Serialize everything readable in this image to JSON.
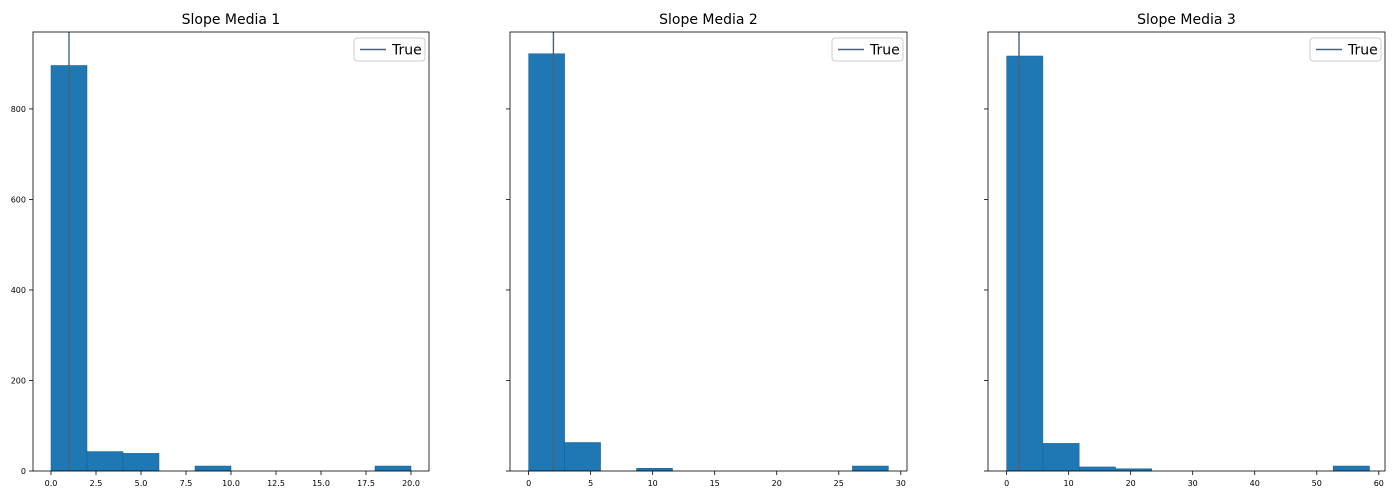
{
  "chart_data": [
    {
      "type": "bar",
      "title": "Slope Media 1",
      "bar_color": "#1f77b4",
      "xlim": [
        -1.0,
        21.0
      ],
      "ylim": [
        0,
        970
      ],
      "xticks": [
        0.0,
        2.5,
        5.0,
        7.5,
        10.0,
        12.5,
        15.0,
        17.5,
        20.0
      ],
      "xtick_labels": [
        "0.0",
        "2.5",
        "5.0",
        "7.5",
        "10.0",
        "12.5",
        "15.0",
        "17.5",
        "20.0"
      ],
      "yticks": [
        0,
        200,
        400,
        600,
        800
      ],
      "ytick_labels": [
        "0",
        "200",
        "400",
        "600",
        "800"
      ],
      "bin_edges": [
        0.0,
        2.0,
        4.0,
        6.0,
        8.0,
        10.0,
        12.0,
        14.0,
        16.0,
        18.0,
        20.0
      ],
      "values": [
        896,
        43,
        39,
        0,
        11,
        0,
        0,
        0,
        0,
        11
      ],
      "true_value": 1.0,
      "legend": {
        "label": "True",
        "loc": "upper right"
      }
    },
    {
      "type": "bar",
      "title": "Slope Media 2",
      "bar_color": "#1f77b4",
      "xlim": [
        -1.5,
        30.5
      ],
      "ylim": [
        0,
        970
      ],
      "xticks": [
        0,
        5,
        10,
        15,
        20,
        25,
        30
      ],
      "xtick_labels": [
        "0",
        "5",
        "10",
        "15",
        "20",
        "25",
        "30"
      ],
      "yticks": [
        0,
        200,
        400,
        600,
        800
      ],
      "ytick_labels": [
        "",
        "",
        "",
        "",
        ""
      ],
      "bin_edges": [
        0.0,
        2.9,
        5.8,
        8.7,
        11.6,
        14.5,
        17.4,
        20.3,
        23.2,
        26.1,
        29.0
      ],
      "values": [
        922,
        63,
        0,
        6,
        0,
        0,
        0,
        0,
        0,
        11
      ],
      "true_value": 2.0,
      "legend": {
        "label": "True",
        "loc": "upper right"
      }
    },
    {
      "type": "bar",
      "title": "Slope Media 3",
      "bar_color": "#1f77b4",
      "xlim": [
        -3.0,
        61.0
      ],
      "ylim": [
        0,
        970
      ],
      "xticks": [
        0,
        10,
        20,
        30,
        40,
        50,
        60
      ],
      "xtick_labels": [
        "0",
        "10",
        "20",
        "30",
        "40",
        "50",
        "60"
      ],
      "yticks": [
        0,
        200,
        400,
        600,
        800
      ],
      "ytick_labels": [
        "",
        "",
        "",
        "",
        ""
      ],
      "bin_edges": [
        0.0,
        5.85,
        11.7,
        17.55,
        23.4,
        29.25,
        35.1,
        40.95,
        46.8,
        52.65,
        58.5
      ],
      "values": [
        917,
        61,
        9,
        5,
        0,
        0,
        0,
        0,
        0,
        11
      ],
      "true_value": 2.0,
      "legend": {
        "label": "True",
        "loc": "upper right"
      }
    }
  ]
}
